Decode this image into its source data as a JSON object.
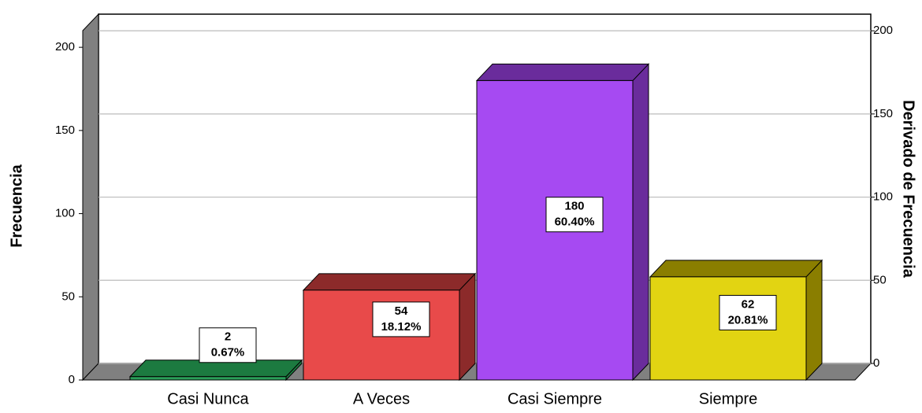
{
  "chart_data": {
    "type": "bar3d",
    "categories": [
      "Casi Nunca",
      "A Veces",
      "Casi Siempre",
      "Siempre"
    ],
    "values": [
      2,
      54,
      180,
      62
    ],
    "value_labels": [
      "2",
      "54",
      "180",
      "62"
    ],
    "percent_labels": [
      "0.67%",
      "18.12%",
      "60.40%",
      "20.81%"
    ],
    "colors": [
      "#2a9e58",
      "#e84a4a",
      "#a64af2",
      "#e2d412"
    ],
    "side_colors": [
      "#1c7a40",
      "#8c2a2a",
      "#6a2c9c",
      "#8a7e00"
    ],
    "ylabel": "Frecuencia",
    "y2label": "Derivado de Frecuencia",
    "ylim": [
      0,
      210
    ],
    "yticks": [
      0,
      50,
      100,
      150,
      200
    ],
    "y2lim": [
      0,
      210
    ],
    "y2ticks": [
      0,
      50,
      100,
      150,
      200
    ],
    "grid": true
  }
}
